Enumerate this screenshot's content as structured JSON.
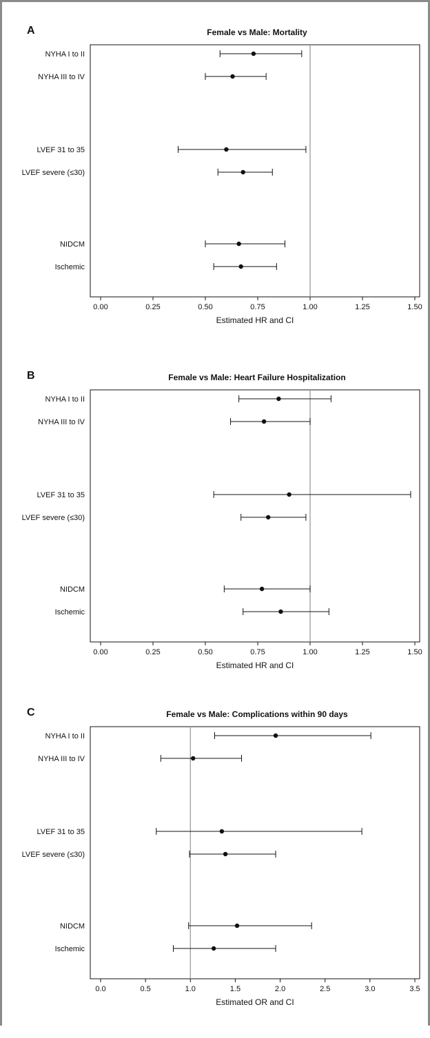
{
  "chart_data": [
    {
      "type": "scatter",
      "panel": "A",
      "title": "Female vs Male: Mortality",
      "xlabel": "Estimated HR and CI",
      "xlim": [
        0,
        1.5
      ],
      "xticks": [
        "0.00",
        "0.25",
        "0.50",
        "0.75",
        "1.00",
        "1.25",
        "1.50"
      ],
      "xtick_values": [
        0,
        0.25,
        0.5,
        0.75,
        1.0,
        1.25,
        1.5
      ],
      "reference_line": 1.0,
      "rows": [
        {
          "label": "NYHA I to II",
          "estimate": 0.73,
          "lower": 0.57,
          "upper": 0.96
        },
        {
          "label": "NYHA III to IV",
          "estimate": 0.63,
          "lower": 0.5,
          "upper": 0.79
        },
        {
          "label": "LVEF 31 to 35",
          "estimate": 0.6,
          "lower": 0.37,
          "upper": 0.98
        },
        {
          "label": "LVEF severe (≤30)",
          "estimate": 0.68,
          "lower": 0.56,
          "upper": 0.82
        },
        {
          "label": "NIDCM",
          "estimate": 0.66,
          "lower": 0.5,
          "upper": 0.88
        },
        {
          "label": "Ischemic",
          "estimate": 0.67,
          "lower": 0.54,
          "upper": 0.84
        }
      ]
    },
    {
      "type": "scatter",
      "panel": "B",
      "title": "Female vs Male: Heart Failure Hospitalization",
      "xlabel": "Estimated HR and CI",
      "xlim": [
        0,
        1.5
      ],
      "xticks": [
        "0.00",
        "0.25",
        "0.50",
        "0.75",
        "1.00",
        "1.25",
        "1.50"
      ],
      "xtick_values": [
        0,
        0.25,
        0.5,
        0.75,
        1.0,
        1.25,
        1.5
      ],
      "reference_line": 1.0,
      "rows": [
        {
          "label": "NYHA I to II",
          "estimate": 0.85,
          "lower": 0.66,
          "upper": 1.1
        },
        {
          "label": "NYHA III to IV",
          "estimate": 0.78,
          "lower": 0.62,
          "upper": 1.0
        },
        {
          "label": "LVEF 31 to 35",
          "estimate": 0.9,
          "lower": 0.54,
          "upper": 1.48
        },
        {
          "label": "LVEF severe (≤30)",
          "estimate": 0.8,
          "lower": 0.67,
          "upper": 0.98
        },
        {
          "label": "NIDCM",
          "estimate": 0.77,
          "lower": 0.59,
          "upper": 1.0
        },
        {
          "label": "Ischemic",
          "estimate": 0.86,
          "lower": 0.68,
          "upper": 1.09
        }
      ]
    },
    {
      "type": "scatter",
      "panel": "C",
      "title": "Female vs Male: Complications within 90 days",
      "xlabel": "Estimated OR and CI",
      "xlim": [
        0,
        3.5
      ],
      "xticks": [
        "0.0",
        "0.5",
        "1.0",
        "1.5",
        "2.0",
        "2.5",
        "3.0",
        "3.5"
      ],
      "xtick_values": [
        0,
        0.5,
        1.0,
        1.5,
        2.0,
        2.5,
        3.0,
        3.5
      ],
      "reference_line": 1.0,
      "rows": [
        {
          "label": "NYHA I to II",
          "estimate": 1.95,
          "lower": 1.27,
          "upper": 3.01
        },
        {
          "label": "NYHA III to IV",
          "estimate": 1.03,
          "lower": 0.67,
          "upper": 1.57
        },
        {
          "label": "LVEF 31 to 35",
          "estimate": 1.35,
          "lower": 0.62,
          "upper": 2.91
        },
        {
          "label": "LVEF severe (≤30)",
          "estimate": 1.39,
          "lower": 0.99,
          "upper": 1.95
        },
        {
          "label": "NIDCM",
          "estimate": 1.52,
          "lower": 0.98,
          "upper": 2.35
        },
        {
          "label": "Ischemic",
          "estimate": 1.26,
          "lower": 0.81,
          "upper": 1.95
        }
      ]
    }
  ],
  "colors": {
    "reference_line": "#9a9a9a",
    "marker": "#111111",
    "frame": "#111111",
    "page_border": "#8a8a8a"
  }
}
